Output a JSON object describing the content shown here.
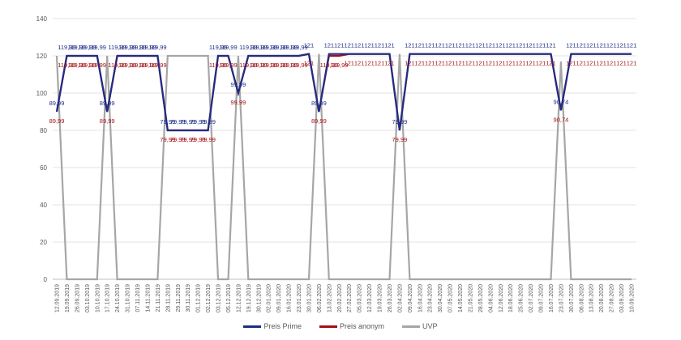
{
  "chart_data": {
    "type": "line",
    "title": "",
    "xlabel": "",
    "ylabel": "",
    "ylim": [
      0,
      140
    ],
    "yticks": [
      0,
      20,
      40,
      60,
      80,
      100,
      120,
      140
    ],
    "grid": true,
    "legend_position": "bottom",
    "x": [
      "12.09.2019",
      "19.09.2019",
      "26.09.2019",
      "03.10.2019",
      "10.10.2019",
      "17.10.2019",
      "24.10.2019",
      "31.10.2019",
      "07.11.2019",
      "14.11.2019",
      "21.11.2019",
      "28.11.2019",
      "29.11.2019",
      "30.11.2019",
      "01.12.2019",
      "02.12.2019",
      "03.12.2019",
      "05.12.2019",
      "12.12.2019",
      "19.12.2019",
      "30.12.2019",
      "02.01.2020",
      "09.01.2020",
      "16.01.2020",
      "23.01.2020",
      "30.01.2020",
      "06.02.2020",
      "13.02.2020",
      "20.02.2020",
      "27.02.2020",
      "05.03.2020",
      "12.03.2020",
      "19.03.2020",
      "26.03.2020",
      "02.04.2020",
      "09.04.2020",
      "16.04.2020",
      "23.04.2020",
      "30.04.2020",
      "07.05.2020",
      "14.05.2020",
      "21.05.2020",
      "28.05.2020",
      "04.06.2020",
      "12.06.2020",
      "18.06.2020",
      "25.06.2020",
      "02.07.2020",
      "09.07.2020",
      "16.07.2020",
      "23.07.2020",
      "30.07.2020",
      "06.08.2020",
      "13.08.2020",
      "20.08.2020",
      "27.08.2020",
      "03.09.2020",
      "10.09.2020"
    ],
    "series": [
      {
        "name": "Preis Prime",
        "color": "#1f2d86",
        "values": [
          89.99,
          119.99,
          119.99,
          119.99,
          119.99,
          89.99,
          119.99,
          119.99,
          119.99,
          119.99,
          119.99,
          79.99,
          79.99,
          79.99,
          79.99,
          79.99,
          119.99,
          119.99,
          99.99,
          119.99,
          119.99,
          119.99,
          119.99,
          119.99,
          119.99,
          121,
          89.99,
          121,
          121,
          121,
          121,
          121,
          121,
          121,
          79.99,
          121,
          121,
          121,
          121,
          121,
          121,
          121,
          121,
          121,
          121,
          121,
          121,
          121,
          121,
          121,
          90.74,
          121,
          121,
          121,
          121,
          121,
          121,
          121
        ]
      },
      {
        "name": "Preis anonym",
        "color": "#a50f15",
        "values": [
          89.99,
          119.99,
          119.99,
          119.99,
          119.99,
          89.99,
          119.99,
          119.99,
          119.99,
          119.99,
          119.99,
          79.99,
          79.99,
          79.99,
          79.99,
          79.99,
          119.99,
          119.99,
          99.99,
          119.99,
          119.99,
          119.99,
          119.99,
          119.99,
          119.99,
          121,
          89.99,
          119.99,
          119.99,
          121,
          121,
          121,
          121,
          121,
          79.99,
          121,
          121,
          121,
          121,
          121,
          121,
          121,
          121,
          121,
          121,
          121,
          121,
          121,
          121,
          121,
          90.74,
          121,
          121,
          121,
          121,
          121,
          121,
          121
        ]
      },
      {
        "name": "UVP",
        "color": "#a6a6a6",
        "values": [
          119.99,
          0,
          0,
          0,
          0,
          119.99,
          0,
          0,
          0,
          0,
          0,
          119.99,
          119.99,
          119.99,
          119.99,
          119.99,
          0,
          0,
          119.99,
          0,
          0,
          0,
          0,
          0,
          0,
          0,
          121,
          0,
          0,
          0,
          0,
          0,
          0,
          0,
          121,
          0,
          0,
          0,
          0,
          0,
          0,
          0,
          0,
          0,
          0,
          0,
          0,
          0,
          0,
          0,
          117,
          0,
          0,
          0,
          0,
          0,
          0,
          0
        ]
      }
    ],
    "data_labels": {
      "Preis Prime": "above",
      "Preis anonym": "below"
    }
  },
  "legend": {
    "items": [
      {
        "label": "Preis Prime",
        "color": "#1f2d86"
      },
      {
        "label": "Preis anonym",
        "color": "#a50f15"
      },
      {
        "label": "UVP",
        "color": "#a6a6a6"
      }
    ]
  }
}
